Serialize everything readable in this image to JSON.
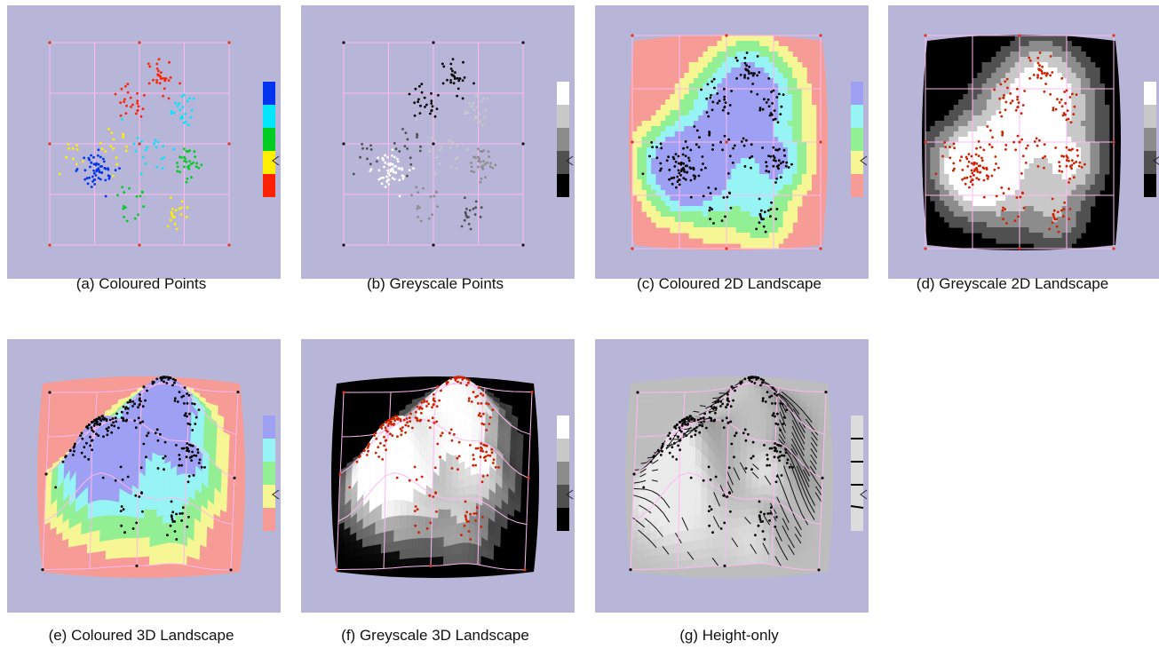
{
  "palettes": {
    "points_colour": [
      "#0033ee",
      "#00e6ff",
      "#00cc22",
      "#ffee00",
      "#ff2200"
    ],
    "points_grey": [
      "#ffffff",
      "#c8c8c8",
      "#8c8c8c",
      "#505050",
      "#000000"
    ],
    "landscape_colour": [
      "#9ea0f4",
      "#96f4f4",
      "#93ef93",
      "#f6f694",
      "#f79b96"
    ],
    "landscape_grey": [
      "#ffffff",
      "#c8c8c8",
      "#8c8c8c",
      "#505050",
      "#000000"
    ],
    "height_only": [
      "#dcdcdc",
      "#dcdcdc",
      "#dcdcdc",
      "#dcdcdc",
      "#dcdcdc"
    ],
    "panel_bg": "#b7b6d9",
    "grid_line": "#ffb8f0"
  },
  "panels": [
    {
      "id": "a",
      "caption": "(a) Coloured Points",
      "mode": "points",
      "palette": "points_colour",
      "point_color": "",
      "corner_color": "#e0351f"
    },
    {
      "id": "b",
      "caption": "(b) Greyscale Points",
      "mode": "points",
      "palette": "points_grey",
      "point_color": "",
      "corner_color": "#111111"
    },
    {
      "id": "c",
      "caption": "(c) Coloured 2D Landscape",
      "mode": "landscape2d",
      "palette": "landscape_colour",
      "point_color": "#000000",
      "corner_color": "#e0351f"
    },
    {
      "id": "d",
      "caption": "(d) Greyscale 2D Landscape",
      "mode": "landscape2d",
      "palette": "landscape_grey",
      "point_color": "#cc2200",
      "corner_color": "#e0351f"
    },
    {
      "id": "e",
      "caption": "(e) Coloured 3D Landscape",
      "mode": "landscape3d",
      "palette": "landscape_colour",
      "point_color": "#000000",
      "corner_color": "#111111"
    },
    {
      "id": "f",
      "caption": "(f) Greyscale 3D Landscape",
      "mode": "landscape3d",
      "palette": "landscape_grey",
      "point_color": "#cc2200",
      "corner_color": "#e0351f"
    },
    {
      "id": "g",
      "caption": "(g) Height-only",
      "mode": "height",
      "palette": "height_only",
      "point_color": "#000000",
      "corner_color": "#111111"
    }
  ]
}
